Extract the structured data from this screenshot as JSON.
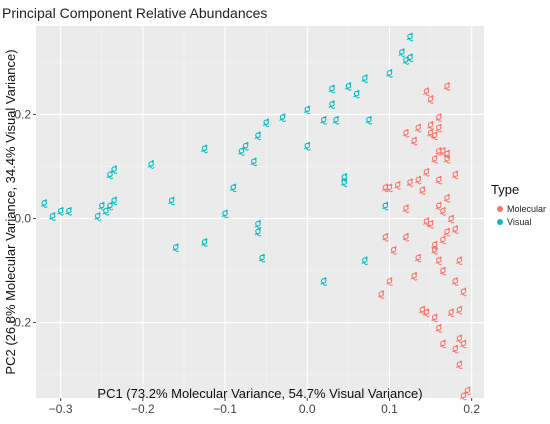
{
  "chart_data": {
    "type": "scatter",
    "title": "Principal Component Relative Abundances",
    "xlabel": "PC1 (73.2% Molecular Variance, 54.7% Visual Variance)",
    "ylabel": "PC2 (26.8% Molecular Variance, 34.4% Visual Variance)",
    "xlim": [
      -0.33,
      0.215
    ],
    "ylim": [
      -0.345,
      0.37
    ],
    "x_ticks": [
      -0.3,
      -0.2,
      -0.1,
      0.0,
      0.1,
      0.2
    ],
    "x_tick_labels": [
      "−0.3",
      "−0.2",
      "−0.1",
      "0.0",
      "0.1",
      "0.2"
    ],
    "y_ticks": [
      -0.2,
      0.0,
      0.2
    ],
    "y_tick_labels": [
      "−0.2",
      "0.0",
      "0.2"
    ],
    "grid": true,
    "legend": {
      "title": "Type",
      "placement": "right"
    },
    "series": [
      {
        "name": "Molecular",
        "color": "#F8766D",
        "points": [
          [
            0.17,
            0.255
          ],
          [
            0.145,
            0.245
          ],
          [
            0.15,
            0.23
          ],
          [
            0.16,
            0.195
          ],
          [
            0.15,
            0.18
          ],
          [
            0.16,
            0.175
          ],
          [
            0.15,
            0.165
          ],
          [
            0.155,
            0.16
          ],
          [
            0.135,
            0.175
          ],
          [
            0.13,
            0.15
          ],
          [
            0.12,
            0.165
          ],
          [
            0.16,
            0.13
          ],
          [
            0.165,
            0.13
          ],
          [
            0.17,
            0.125
          ],
          [
            0.155,
            0.115
          ],
          [
            0.17,
            0.115
          ],
          [
            0.145,
            0.09
          ],
          [
            0.16,
            0.075
          ],
          [
            0.18,
            0.085
          ],
          [
            0.135,
            0.075
          ],
          [
            0.125,
            0.07
          ],
          [
            0.11,
            0.065
          ],
          [
            0.1,
            0.06
          ],
          [
            0.095,
            0.06
          ],
          [
            0.14,
            0.055
          ],
          [
            0.17,
            0.04
          ],
          [
            0.16,
            0.025
          ],
          [
            0.12,
            0.02
          ],
          [
            0.165,
            0.015
          ],
          [
            0.175,
            0.0
          ],
          [
            0.145,
            -0.005
          ],
          [
            0.15,
            -0.01
          ],
          [
            0.18,
            -0.02
          ],
          [
            0.17,
            -0.025
          ],
          [
            0.095,
            -0.035
          ],
          [
            0.12,
            -0.035
          ],
          [
            0.165,
            -0.04
          ],
          [
            0.155,
            -0.05
          ],
          [
            0.105,
            -0.06
          ],
          [
            0.155,
            -0.06
          ],
          [
            0.135,
            -0.075
          ],
          [
            0.16,
            -0.08
          ],
          [
            0.185,
            -0.08
          ],
          [
            0.165,
            -0.1
          ],
          [
            0.13,
            -0.11
          ],
          [
            0.1,
            -0.12
          ],
          [
            0.18,
            -0.12
          ],
          [
            0.19,
            -0.14
          ],
          [
            0.09,
            -0.145
          ],
          [
            0.14,
            -0.175
          ],
          [
            0.145,
            -0.18
          ],
          [
            0.175,
            -0.18
          ],
          [
            0.185,
            -0.175
          ],
          [
            0.155,
            -0.19
          ],
          [
            0.16,
            -0.21
          ],
          [
            0.185,
            -0.23
          ],
          [
            0.19,
            -0.24
          ],
          [
            0.165,
            -0.24
          ],
          [
            0.18,
            -0.25
          ],
          [
            0.185,
            -0.28
          ],
          [
            0.195,
            -0.33
          ],
          [
            0.19,
            -0.34
          ]
        ]
      },
      {
        "name": "Visual",
        "color": "#00BFC4",
        "points": [
          [
            0.125,
            0.35
          ],
          [
            0.115,
            0.32
          ],
          [
            0.125,
            0.31
          ],
          [
            0.12,
            0.305
          ],
          [
            0.1,
            0.28
          ],
          [
            0.07,
            0.27
          ],
          [
            0.05,
            0.255
          ],
          [
            0.06,
            0.24
          ],
          [
            0.03,
            0.25
          ],
          [
            0.03,
            0.22
          ],
          [
            0.0,
            0.21
          ],
          [
            0.02,
            0.19
          ],
          [
            0.035,
            0.19
          ],
          [
            0.075,
            0.19
          ],
          [
            -0.03,
            0.195
          ],
          [
            -0.05,
            0.185
          ],
          [
            -0.06,
            0.16
          ],
          [
            0.0,
            0.14
          ],
          [
            -0.075,
            0.14
          ],
          [
            -0.08,
            0.13
          ],
          [
            -0.065,
            0.11
          ],
          [
            -0.125,
            0.135
          ],
          [
            -0.19,
            0.105
          ],
          [
            -0.235,
            0.095
          ],
          [
            -0.24,
            0.085
          ],
          [
            0.045,
            0.08
          ],
          [
            0.045,
            0.07
          ],
          [
            -0.09,
            0.06
          ],
          [
            -0.32,
            0.03
          ],
          [
            -0.3,
            0.015
          ],
          [
            -0.31,
            0.005
          ],
          [
            -0.29,
            0.015
          ],
          [
            -0.25,
            0.025
          ],
          [
            -0.235,
            0.035
          ],
          [
            -0.24,
            0.025
          ],
          [
            -0.245,
            0.015
          ],
          [
            -0.255,
            0.005
          ],
          [
            -0.165,
            0.035
          ],
          [
            0.095,
            0.025
          ],
          [
            -0.1,
            0.01
          ],
          [
            -0.06,
            -0.01
          ],
          [
            -0.06,
            -0.025
          ],
          [
            -0.125,
            -0.045
          ],
          [
            -0.16,
            -0.055
          ],
          [
            -0.055,
            -0.075
          ],
          [
            0.07,
            -0.08
          ],
          [
            0.02,
            -0.12
          ]
        ]
      }
    ]
  }
}
